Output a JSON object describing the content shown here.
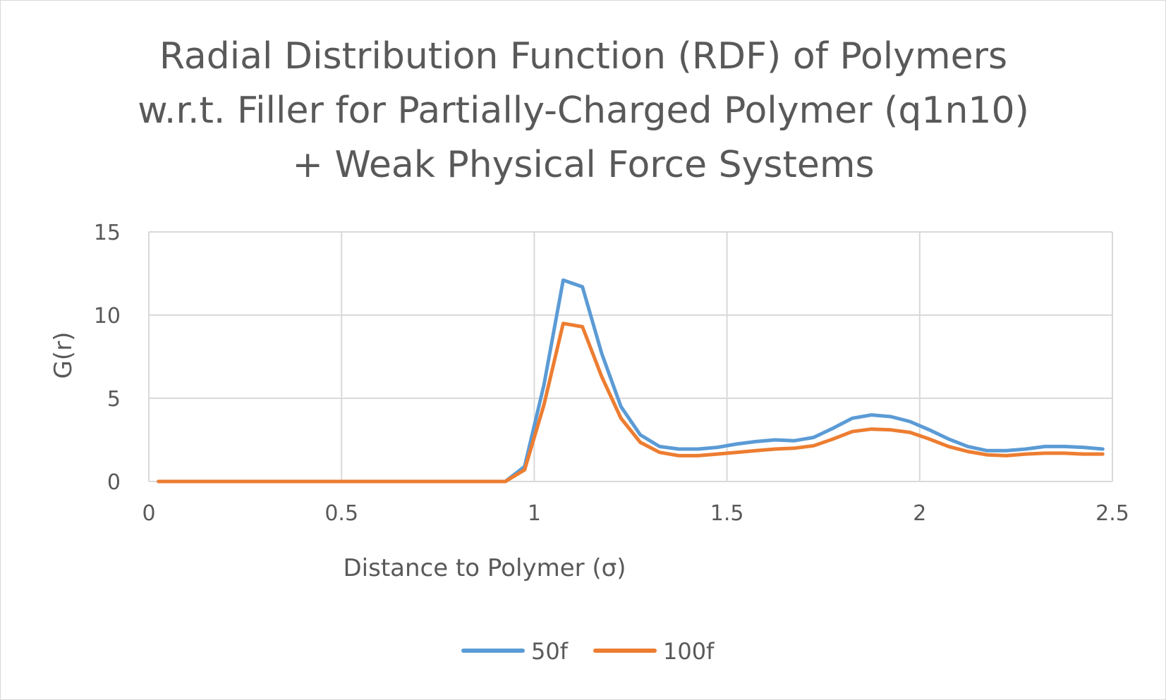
{
  "chart_data": {
    "type": "line",
    "title_lines": [
      "Radial Distribution Function (RDF) of Polymers",
      "w.r.t. Filler for Partially-Charged Polymer (q1n10)",
      "+ Weak Physical Force Systems"
    ],
    "xlabel": "Distance to Polymer (σ)",
    "ylabel": "G(r)",
    "xlim": [
      0,
      2.5
    ],
    "ylim": [
      0,
      15
    ],
    "xticks": [
      "0",
      "0.5",
      "1",
      "1.5",
      "2",
      "2.5"
    ],
    "xtick_values": [
      0,
      0.5,
      1,
      1.5,
      2,
      2.5
    ],
    "yticks": [
      "0",
      "5",
      "10",
      "15"
    ],
    "ytick_values": [
      0,
      5,
      10,
      15
    ],
    "grid": true,
    "legend_position": "bottom",
    "x": [
      0.025,
      0.075,
      0.125,
      0.175,
      0.225,
      0.275,
      0.325,
      0.375,
      0.425,
      0.475,
      0.525,
      0.575,
      0.625,
      0.675,
      0.725,
      0.775,
      0.825,
      0.875,
      0.925,
      0.975,
      1.025,
      1.075,
      1.125,
      1.175,
      1.225,
      1.275,
      1.325,
      1.375,
      1.425,
      1.475,
      1.525,
      1.575,
      1.625,
      1.675,
      1.725,
      1.775,
      1.825,
      1.875,
      1.925,
      1.975,
      2.025,
      2.075,
      2.125,
      2.175,
      2.225,
      2.275,
      2.325,
      2.375,
      2.425,
      2.475
    ],
    "series": [
      {
        "name": "50f",
        "color": "#5b9bd5",
        "values": [
          0,
          0,
          0,
          0,
          0,
          0,
          0,
          0,
          0,
          0,
          0,
          0,
          0,
          0,
          0,
          0,
          0,
          0,
          0,
          0.9,
          5.8,
          12.1,
          11.7,
          7.7,
          4.5,
          2.8,
          2.1,
          1.95,
          1.95,
          2.05,
          2.25,
          2.4,
          2.5,
          2.45,
          2.65,
          3.2,
          3.8,
          4.0,
          3.9,
          3.6,
          3.1,
          2.55,
          2.1,
          1.85,
          1.85,
          1.95,
          2.1,
          2.1,
          2.05,
          1.95
        ]
      },
      {
        "name": "100f",
        "color": "#ed7d31",
        "values": [
          0,
          0,
          0,
          0,
          0,
          0,
          0,
          0,
          0,
          0,
          0,
          0,
          0,
          0,
          0,
          0,
          0,
          0,
          0,
          0.7,
          4.6,
          9.5,
          9.3,
          6.3,
          3.8,
          2.35,
          1.75,
          1.55,
          1.55,
          1.65,
          1.75,
          1.85,
          1.95,
          2.0,
          2.15,
          2.55,
          3.0,
          3.15,
          3.1,
          2.95,
          2.55,
          2.1,
          1.8,
          1.6,
          1.55,
          1.65,
          1.7,
          1.7,
          1.65,
          1.65
        ]
      }
    ]
  }
}
